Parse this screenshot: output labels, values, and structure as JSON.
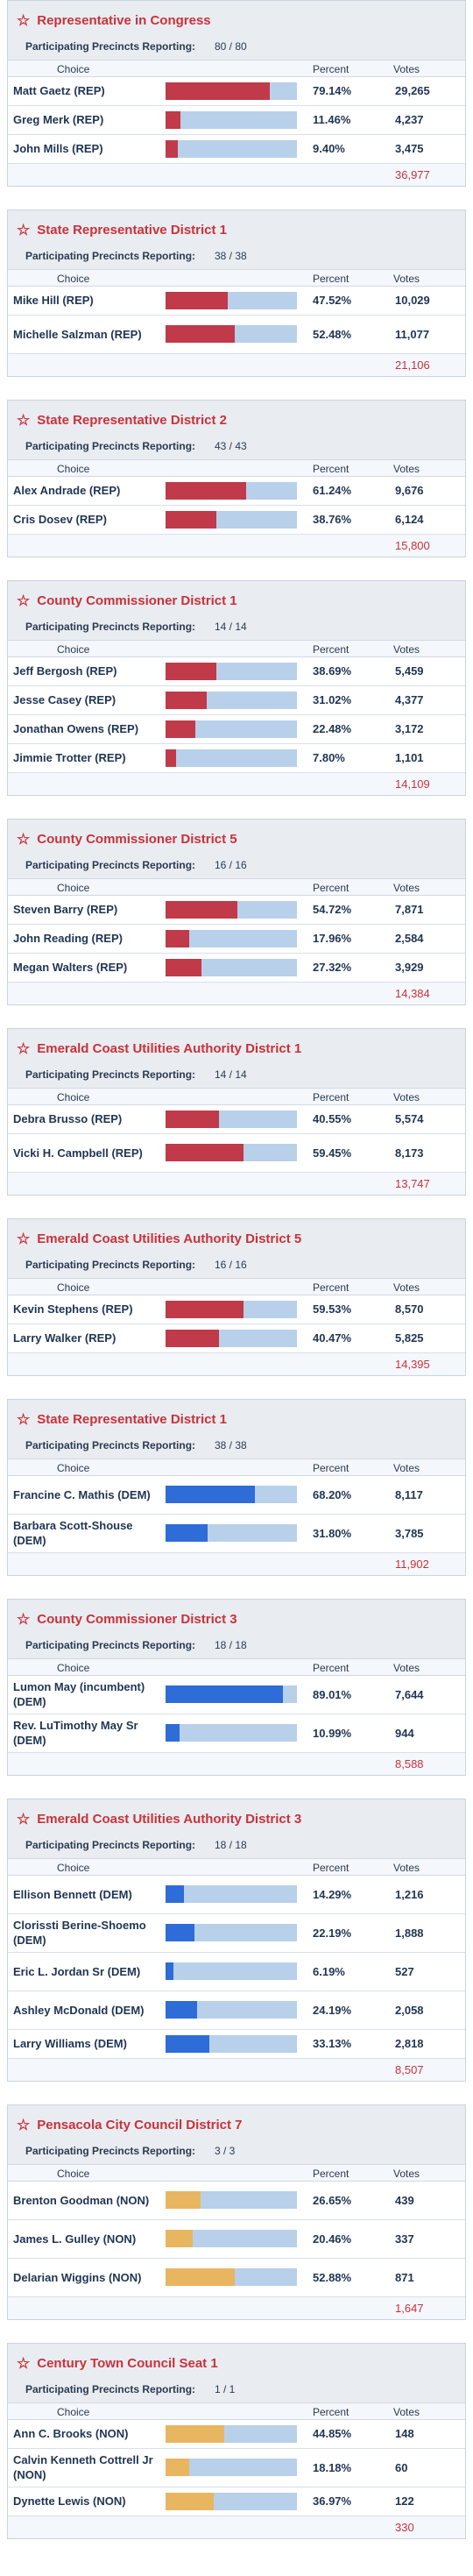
{
  "labels": {
    "reporting": "Participating Precincts Reporting:",
    "choice": "Choice",
    "percent": "Percent",
    "votes": "Votes"
  },
  "colors": {
    "rep": "#c03a4a",
    "dem": "#2e6cd8",
    "non": "#e8b560",
    "bar_bg": "#b8d0ea",
    "title": "#c8323c"
  },
  "races": [
    {
      "title": "Representative in Congress",
      "reporting": "80 / 80",
      "total": "36,977",
      "party": "rep",
      "candidates": [
        {
          "name": "Matt Gaetz (REP)",
          "percent": "79.14%",
          "pct": 79.14,
          "votes": "29,265"
        },
        {
          "name": "Greg Merk (REP)",
          "percent": "11.46%",
          "pct": 11.46,
          "votes": "4,237"
        },
        {
          "name": "John Mills (REP)",
          "percent": "9.40%",
          "pct": 9.4,
          "votes": "3,475"
        }
      ]
    },
    {
      "title": "State Representative District 1",
      "reporting": "38 / 38",
      "total": "21,106",
      "party": "rep",
      "candidates": [
        {
          "name": "Mike Hill (REP)",
          "percent": "47.52%",
          "pct": 47.52,
          "votes": "10,029"
        },
        {
          "name": "Michelle Salzman (REP)",
          "percent": "52.48%",
          "pct": 52.48,
          "votes": "11,077"
        }
      ]
    },
    {
      "title": "State Representative District 2",
      "reporting": "43 / 43",
      "total": "15,800",
      "party": "rep",
      "candidates": [
        {
          "name": "Alex Andrade (REP)",
          "percent": "61.24%",
          "pct": 61.24,
          "votes": "9,676"
        },
        {
          "name": "Cris Dosev (REP)",
          "percent": "38.76%",
          "pct": 38.76,
          "votes": "6,124"
        }
      ]
    },
    {
      "title": "County Commissioner District 1",
      "reporting": "14 / 14",
      "total": "14,109",
      "party": "rep",
      "candidates": [
        {
          "name": "Jeff Bergosh (REP)",
          "percent": "38.69%",
          "pct": 38.69,
          "votes": "5,459"
        },
        {
          "name": "Jesse Casey (REP)",
          "percent": "31.02%",
          "pct": 31.02,
          "votes": "4,377"
        },
        {
          "name": "Jonathan Owens (REP)",
          "percent": "22.48%",
          "pct": 22.48,
          "votes": "3,172"
        },
        {
          "name": "Jimmie Trotter (REP)",
          "percent": "7.80%",
          "pct": 7.8,
          "votes": "1,101"
        }
      ]
    },
    {
      "title": "County Commissioner District 5",
      "reporting": "16 / 16",
      "total": "14,384",
      "party": "rep",
      "candidates": [
        {
          "name": "Steven Barry (REP)",
          "percent": "54.72%",
          "pct": 54.72,
          "votes": "7,871"
        },
        {
          "name": "John Reading (REP)",
          "percent": "17.96%",
          "pct": 17.96,
          "votes": "2,584"
        },
        {
          "name": "Megan Walters (REP)",
          "percent": "27.32%",
          "pct": 27.32,
          "votes": "3,929"
        }
      ]
    },
    {
      "title": "Emerald Coast Utilities Authority District 1",
      "reporting": "14 / 14",
      "total": "13,747",
      "party": "rep",
      "candidates": [
        {
          "name": "Debra Brusso (REP)",
          "percent": "40.55%",
          "pct": 40.55,
          "votes": "5,574"
        },
        {
          "name": "Vicki H. Campbell (REP)",
          "percent": "59.45%",
          "pct": 59.45,
          "votes": "8,173"
        }
      ]
    },
    {
      "title": "Emerald Coast Utilities Authority District 5",
      "reporting": "16 / 16",
      "total": "14,395",
      "party": "rep",
      "candidates": [
        {
          "name": "Kevin Stephens (REP)",
          "percent": "59.53%",
          "pct": 59.53,
          "votes": "8,570"
        },
        {
          "name": "Larry Walker (REP)",
          "percent": "40.47%",
          "pct": 40.47,
          "votes": "5,825"
        }
      ]
    },
    {
      "title": "State Representative District 1",
      "reporting": "38 / 38",
      "total": "11,902",
      "party": "dem",
      "candidates": [
        {
          "name": "Francine C. Mathis (DEM)",
          "percent": "68.20%",
          "pct": 68.2,
          "votes": "8,117"
        },
        {
          "name": "Barbara Scott-Shouse (DEM)",
          "percent": "31.80%",
          "pct": 31.8,
          "votes": "3,785"
        }
      ]
    },
    {
      "title": "County Commissioner District 3",
      "reporting": "18 / 18",
      "total": "8,588",
      "party": "dem",
      "candidates": [
        {
          "name": "Lumon May (incumbent) (DEM)",
          "percent": "89.01%",
          "pct": 89.01,
          "votes": "7,644"
        },
        {
          "name": "Rev. LuTimothy May Sr (DEM)",
          "percent": "10.99%",
          "pct": 10.99,
          "votes": "944"
        }
      ]
    },
    {
      "title": "Emerald Coast Utilities Authority District 3",
      "reporting": "18 / 18",
      "total": "8,507",
      "party": "dem",
      "candidates": [
        {
          "name": "Ellison Bennett (DEM)",
          "percent": "14.29%",
          "pct": 14.29,
          "votes": "1,216"
        },
        {
          "name": "Clorissti Berine-Shoemo (DEM)",
          "percent": "22.19%",
          "pct": 22.19,
          "votes": "1,888"
        },
        {
          "name": "Eric L. Jordan Sr (DEM)",
          "percent": "6.19%",
          "pct": 6.19,
          "votes": "527"
        },
        {
          "name": "Ashley McDonald (DEM)",
          "percent": "24.19%",
          "pct": 24.19,
          "votes": "2,058"
        },
        {
          "name": "Larry Williams (DEM)",
          "percent": "33.13%",
          "pct": 33.13,
          "votes": "2,818"
        }
      ]
    },
    {
      "title": "Pensacola City Council District 7",
      "reporting": "3 / 3",
      "total": "1,647",
      "party": "non",
      "candidates": [
        {
          "name": "Brenton Goodman (NON)",
          "percent": "26.65%",
          "pct": 26.65,
          "votes": "439"
        },
        {
          "name": "James L. Gulley (NON)",
          "percent": "20.46%",
          "pct": 20.46,
          "votes": "337"
        },
        {
          "name": "Delarian Wiggins (NON)",
          "percent": "52.88%",
          "pct": 52.88,
          "votes": "871"
        }
      ]
    },
    {
      "title": "Century Town Council Seat 1",
      "reporting": "1 / 1",
      "total": "330",
      "party": "non",
      "candidates": [
        {
          "name": "Ann C. Brooks (NON)",
          "percent": "44.85%",
          "pct": 44.85,
          "votes": "148"
        },
        {
          "name": "Calvin Kenneth Cottrell Jr (NON)",
          "percent": "18.18%",
          "pct": 18.18,
          "votes": "60"
        },
        {
          "name": "Dynette Lewis (NON)",
          "percent": "36.97%",
          "pct": 36.97,
          "votes": "122"
        }
      ]
    }
  ]
}
